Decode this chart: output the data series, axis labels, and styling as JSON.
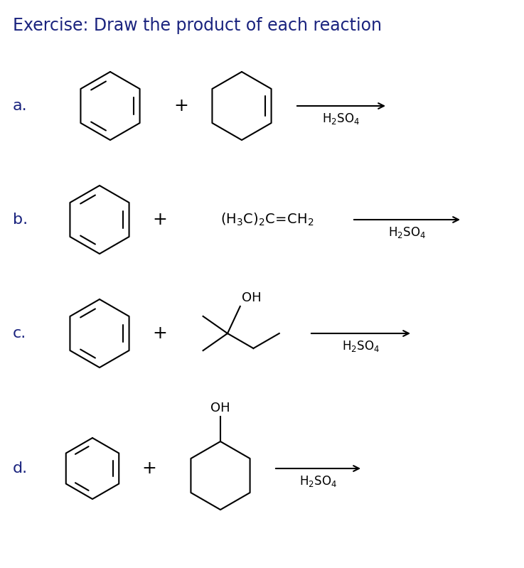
{
  "title": "Exercise: Draw the product of each reaction",
  "title_color": "#1a237e",
  "title_fontsize": 17,
  "background_color": "#ffffff",
  "label_color": "#1a237e",
  "label_fontsize": 16,
  "labels": [
    "a.",
    "b.",
    "c.",
    "d."
  ],
  "figsize": [
    7.37,
    7.99
  ],
  "dpi": 100,
  "bond_lw": 1.5,
  "reagent_fontsize": 12,
  "plus_fontsize": 18
}
